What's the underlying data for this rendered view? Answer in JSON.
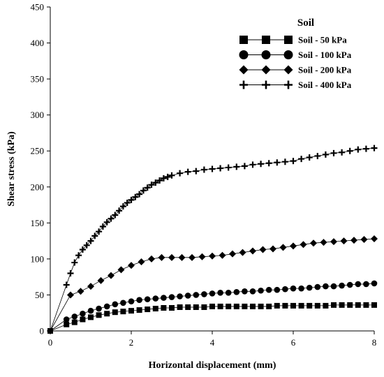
{
  "chart_data": {
    "type": "line",
    "xlabel": "Horizontal displacement (mm)",
    "ylabel": "Shear stress (kPa)",
    "xlim": [
      0,
      8
    ],
    "ylim": [
      0,
      450
    ],
    "xticks": [
      "0",
      "2",
      "4",
      "6",
      "8"
    ],
    "yticks": [
      "0",
      "50",
      "100",
      "150",
      "200",
      "250",
      "300",
      "350",
      "400",
      "450"
    ],
    "grid": false,
    "legend": {
      "title": "Soil",
      "placement": "top-right"
    },
    "series": [
      {
        "name": "Soil - 50 kPa",
        "marker": "square",
        "x": [
          0,
          0.4,
          0.6,
          0.8,
          1.0,
          1.2,
          1.4,
          1.6,
          1.8,
          2.0,
          2.2,
          2.4,
          2.6,
          2.8,
          3.0,
          3.2,
          3.4,
          3.6,
          3.8,
          4.0,
          4.2,
          4.4,
          4.6,
          4.8,
          5.0,
          5.2,
          5.4,
          5.6,
          5.8,
          6.0,
          6.2,
          6.4,
          6.6,
          6.8,
          7.0,
          7.2,
          7.4,
          7.6,
          7.8,
          8.0
        ],
        "y": [
          0,
          9,
          12,
          16,
          19,
          22,
          24,
          26,
          27,
          28,
          29,
          30,
          31,
          32,
          32,
          33,
          33,
          33,
          33,
          34,
          34,
          34,
          34,
          34,
          34,
          34,
          34,
          35,
          35,
          35,
          35,
          35,
          35,
          35,
          36,
          36,
          36,
          36,
          36,
          36
        ]
      },
      {
        "name": "Soil - 100 kPa",
        "marker": "circle",
        "x": [
          0,
          0.4,
          0.6,
          0.8,
          1.0,
          1.2,
          1.4,
          1.6,
          1.8,
          2.0,
          2.2,
          2.4,
          2.6,
          2.8,
          3.0,
          3.2,
          3.4,
          3.6,
          3.8,
          4.0,
          4.2,
          4.4,
          4.6,
          4.8,
          5.0,
          5.2,
          5.4,
          5.6,
          5.8,
          6.0,
          6.2,
          6.4,
          6.6,
          6.8,
          7.0,
          7.2,
          7.4,
          7.6,
          7.8,
          8.0
        ],
        "y": [
          0,
          16,
          20,
          24,
          28,
          31,
          34,
          37,
          39,
          41,
          43,
          44,
          45,
          46,
          47,
          48,
          49,
          50,
          51,
          52,
          53,
          53,
          54,
          55,
          55,
          56,
          57,
          57,
          58,
          59,
          59,
          60,
          61,
          62,
          62,
          63,
          64,
          65,
          65,
          66
        ]
      },
      {
        "name": "Soil - 200 kPa",
        "marker": "diamond",
        "x": [
          0,
          0.5,
          0.75,
          1.0,
          1.25,
          1.5,
          1.75,
          2.0,
          2.25,
          2.5,
          2.75,
          3.0,
          3.25,
          3.5,
          3.75,
          4.0,
          4.25,
          4.5,
          4.75,
          5.0,
          5.25,
          5.5,
          5.75,
          6.0,
          6.25,
          6.5,
          6.75,
          7.0,
          7.25,
          7.5,
          7.75,
          8.0
        ],
        "y": [
          0,
          50,
          55,
          62,
          70,
          77,
          85,
          91,
          96,
          100,
          102,
          102,
          102,
          102,
          103,
          104,
          105,
          107,
          109,
          111,
          113,
          114,
          116,
          118,
          120,
          122,
          123,
          124,
          125,
          126,
          127,
          128
        ]
      },
      {
        "name": "Soil - 400 kPa",
        "marker": "plus",
        "x": [
          0,
          0.4,
          0.5,
          0.6,
          0.7,
          0.8,
          0.9,
          1.0,
          1.1,
          1.2,
          1.3,
          1.4,
          1.5,
          1.6,
          1.7,
          1.8,
          1.9,
          2.0,
          2.1,
          2.2,
          2.3,
          2.4,
          2.5,
          2.6,
          2.7,
          2.8,
          2.9,
          3.0,
          3.2,
          3.4,
          3.6,
          3.8,
          4.0,
          4.2,
          4.4,
          4.6,
          4.8,
          5.0,
          5.2,
          5.4,
          5.6,
          5.8,
          6.0,
          6.2,
          6.4,
          6.6,
          6.8,
          7.0,
          7.2,
          7.4,
          7.6,
          7.8,
          8.0
        ],
        "y": [
          0,
          64,
          80,
          95,
          105,
          113,
          119,
          125,
          132,
          138,
          145,
          151,
          156,
          161,
          167,
          173,
          178,
          182,
          186,
          190,
          195,
          199,
          203,
          206,
          209,
          212,
          214,
          216,
          219,
          221,
          222,
          224,
          225,
          226,
          227,
          228,
          229,
          231,
          232,
          233,
          234,
          235,
          236,
          239,
          241,
          243,
          245,
          247,
          248,
          250,
          252,
          253,
          254
        ]
      }
    ]
  }
}
